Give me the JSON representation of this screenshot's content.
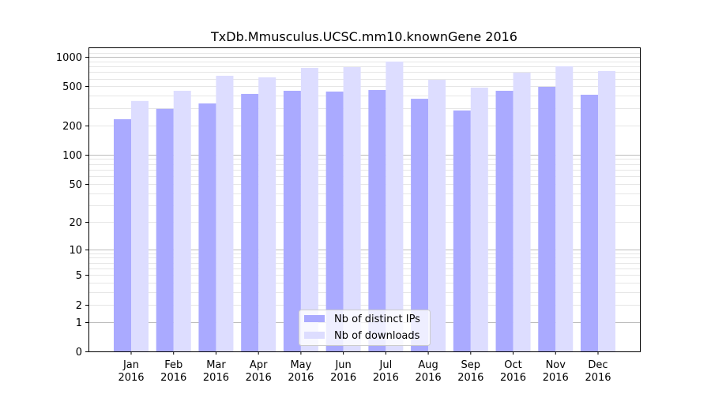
{
  "chart_data": {
    "type": "bar",
    "title": "TxDb.Mmusculus.UCSC.mm10.knownGene 2016",
    "xlabel": "",
    "ylabel": "",
    "yscale": "log10(1+y)",
    "ylim": [
      0,
      1200
    ],
    "yticks": [
      0,
      1,
      2,
      5,
      10,
      20,
      50,
      100,
      200,
      500,
      1000
    ],
    "grid": true,
    "legend_position": "bottom-center",
    "categories": [
      "Jan\n2016",
      "Feb\n2016",
      "Mar\n2016",
      "Apr\n2016",
      "May\n2016",
      "Jun\n2016",
      "Jul\n2016",
      "Aug\n2016",
      "Sep\n2016",
      "Oct\n2016",
      "Nov\n2016",
      "Dec\n2016"
    ],
    "series": [
      {
        "name": "Nb of distinct IPs",
        "color": "#aaaaff",
        "values": [
          231,
          295,
          335,
          419,
          451,
          443,
          459,
          374,
          284,
          451,
          495,
          411
        ]
      },
      {
        "name": "Nb of downloads",
        "color": "#ddddff",
        "values": [
          355,
          451,
          642,
          619,
          772,
          787,
          896,
          584,
          486,
          691,
          801,
          717
        ]
      }
    ]
  }
}
